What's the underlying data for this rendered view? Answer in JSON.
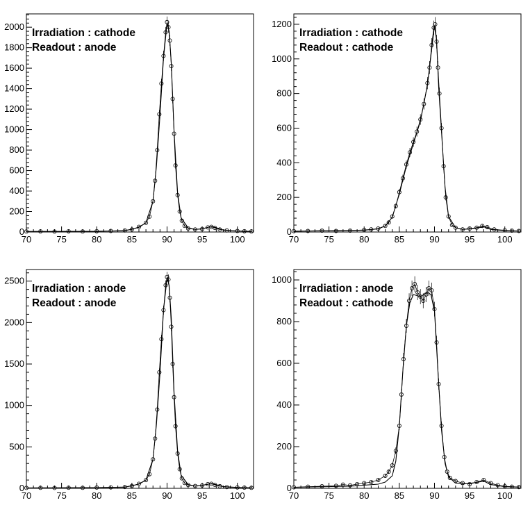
{
  "chart_data": [
    {
      "type": "scatter",
      "annotations": [
        "Irradiation : cathode",
        "Readout : anode"
      ],
      "xlim": [
        70,
        102.3
      ],
      "ylim": [
        0,
        2130
      ],
      "x_ticks": [
        70,
        75,
        80,
        85,
        90,
        95,
        100
      ],
      "y_ticks": [
        0,
        200,
        400,
        600,
        800,
        1000,
        1200,
        1400,
        1600,
        1800,
        2000
      ],
      "grid": false,
      "series": [
        {
          "kind": "data_points_with_error_bars",
          "x": [
            70,
            72,
            74,
            76,
            78,
            80,
            82,
            84,
            85,
            86,
            87,
            87.5,
            88,
            88.3,
            88.6,
            88.9,
            89.2,
            89.5,
            89.8,
            90.0,
            90.2,
            90.4,
            90.6,
            90.8,
            91.0,
            91.2,
            91.5,
            91.8,
            92.1,
            92.5,
            93,
            94,
            95,
            95.8,
            96.3,
            96.8,
            97.5,
            98.5,
            100,
            101,
            102
          ],
          "y": [
            5,
            6,
            4,
            7,
            5,
            8,
            10,
            15,
            25,
            50,
            90,
            150,
            300,
            500,
            800,
            1150,
            1450,
            1720,
            1950,
            2050,
            2000,
            1870,
            1620,
            1300,
            960,
            650,
            360,
            200,
            110,
            60,
            35,
            25,
            30,
            45,
            50,
            40,
            25,
            15,
            10,
            8,
            6
          ]
        },
        {
          "kind": "fit_curve",
          "x": [
            70,
            80,
            84,
            86,
            87,
            88,
            88.5,
            89,
            89.5,
            90,
            90.3,
            90.6,
            91,
            91.5,
            92,
            93,
            94,
            95,
            96,
            96.5,
            97,
            98,
            100,
            102
          ],
          "y": [
            5,
            7,
            12,
            45,
            90,
            300,
            650,
            1150,
            1700,
            2040,
            1960,
            1650,
            980,
            380,
            140,
            40,
            25,
            32,
            48,
            52,
            42,
            20,
            10,
            6
          ]
        }
      ]
    },
    {
      "type": "scatter",
      "annotations": [
        "Irradiation : cathode",
        "Readout : cathode"
      ],
      "xlim": [
        70,
        102.3
      ],
      "ylim": [
        0,
        1260
      ],
      "x_ticks": [
        70,
        75,
        80,
        85,
        90,
        95,
        100
      ],
      "y_ticks": [
        0,
        200,
        400,
        600,
        800,
        1000,
        1200
      ],
      "grid": false,
      "series": [
        {
          "kind": "data_points_with_error_bars",
          "x": [
            70,
            72,
            74,
            76,
            78,
            80,
            81,
            82,
            83,
            83.5,
            84,
            84.5,
            85,
            85.5,
            86,
            86.5,
            87,
            87.5,
            88,
            88.5,
            89,
            89.3,
            89.6,
            89.9,
            90.1,
            90.3,
            90.5,
            90.7,
            91.0,
            91.3,
            91.6,
            92,
            92.5,
            93,
            94,
            95,
            96,
            96.8,
            97.5,
            98.5,
            100,
            101,
            102
          ],
          "y": [
            5,
            6,
            8,
            6,
            8,
            12,
            15,
            20,
            35,
            55,
            90,
            150,
            230,
            310,
            390,
            460,
            520,
            580,
            650,
            740,
            860,
            950,
            1080,
            1180,
            1200,
            1100,
            950,
            800,
            600,
            380,
            200,
            90,
            40,
            25,
            15,
            20,
            25,
            35,
            28,
            15,
            10,
            8,
            6
          ]
        },
        {
          "kind": "fit_curve",
          "x": [
            70,
            80,
            82,
            83,
            84,
            85,
            86,
            87,
            88,
            89,
            89.5,
            90,
            90.3,
            90.6,
            91,
            91.5,
            92,
            93,
            94,
            95,
            96,
            97,
            98,
            100,
            102
          ],
          "y": [
            5,
            10,
            18,
            35,
            85,
            220,
            380,
            510,
            640,
            850,
            1020,
            1190,
            1110,
            830,
            580,
            260,
            90,
            25,
            15,
            18,
            22,
            30,
            15,
            8,
            6
          ]
        }
      ]
    },
    {
      "type": "scatter",
      "annotations": [
        "Irradiation : anode",
        "Readout : anode"
      ],
      "xlim": [
        70,
        102.3
      ],
      "ylim": [
        0,
        2640
      ],
      "x_ticks": [
        70,
        75,
        80,
        85,
        90,
        95,
        100
      ],
      "y_ticks": [
        0,
        500,
        1000,
        1500,
        2000,
        2500
      ],
      "grid": false,
      "series": [
        {
          "kind": "data_points_with_error_bars",
          "x": [
            70,
            72,
            74,
            76,
            78,
            80,
            82,
            84,
            85,
            86,
            87,
            87.5,
            88,
            88.3,
            88.6,
            88.9,
            89.2,
            89.5,
            89.8,
            90.0,
            90.2,
            90.4,
            90.6,
            90.8,
            91.0,
            91.2,
            91.5,
            91.8,
            92.1,
            92.5,
            93,
            94,
            95,
            95.8,
            96.3,
            96.8,
            97.5,
            98.5,
            100,
            101,
            102
          ],
          "y": [
            5,
            6,
            5,
            7,
            6,
            9,
            11,
            16,
            28,
            55,
            100,
            170,
            350,
            600,
            950,
            1400,
            1800,
            2150,
            2450,
            2550,
            2520,
            2300,
            1950,
            1500,
            1100,
            750,
            420,
            230,
            120,
            65,
            40,
            28,
            35,
            50,
            55,
            42,
            26,
            15,
            10,
            8,
            6
          ]
        },
        {
          "kind": "fit_curve",
          "x": [
            70,
            80,
            84,
            86,
            87,
            88,
            88.5,
            89,
            89.5,
            90,
            90.3,
            90.6,
            91,
            91.5,
            92,
            93,
            94,
            95,
            96,
            96.5,
            97,
            98,
            100,
            102
          ],
          "y": [
            5,
            8,
            14,
            50,
            100,
            350,
            780,
            1400,
            2150,
            2540,
            2450,
            2050,
            1150,
            450,
            160,
            45,
            28,
            36,
            52,
            56,
            44,
            22,
            10,
            6
          ]
        }
      ]
    },
    {
      "type": "scatter",
      "annotations": [
        "Irradiation : anode",
        "Readout : cathode"
      ],
      "xlim": [
        70,
        102.3
      ],
      "ylim": [
        0,
        1050
      ],
      "x_ticks": [
        70,
        75,
        80,
        85,
        90,
        95,
        100
      ],
      "y_ticks": [
        0,
        200,
        400,
        600,
        800,
        1000
      ],
      "grid": false,
      "series": [
        {
          "kind": "data_points_with_error_bars",
          "x": [
            70,
            72,
            74,
            76,
            77,
            78,
            79,
            80,
            81,
            82,
            83,
            83.5,
            84,
            84.5,
            85,
            85.3,
            85.6,
            86,
            86.4,
            86.8,
            87.2,
            87.6,
            88,
            88.4,
            88.8,
            89.2,
            89.6,
            90,
            90.3,
            90.6,
            91,
            91.4,
            91.8,
            92.2,
            93,
            94,
            95,
            96,
            97,
            98,
            99,
            100,
            101,
            102
          ],
          "y": [
            5,
            8,
            10,
            12,
            18,
            14,
            20,
            25,
            30,
            40,
            60,
            80,
            110,
            180,
            300,
            450,
            620,
            780,
            900,
            960,
            980,
            940,
            920,
            900,
            930,
            960,
            950,
            860,
            700,
            500,
            300,
            150,
            80,
            50,
            35,
            25,
            20,
            30,
            40,
            25,
            15,
            10,
            8,
            6
          ]
        },
        {
          "kind": "fit_curve",
          "x": [
            70,
            78,
            82,
            83,
            84,
            84.5,
            85,
            85.5,
            86,
            86.5,
            87,
            88,
            89,
            89.5,
            90,
            90.5,
            91,
            91.5,
            92,
            93,
            94,
            96,
            97,
            98,
            100,
            102
          ],
          "y": [
            5,
            10,
            20,
            30,
            60,
            130,
            300,
            560,
            780,
            890,
            930,
            920,
            940,
            930,
            850,
            560,
            280,
            120,
            55,
            25,
            20,
            28,
            35,
            18,
            8,
            6
          ]
        }
      ]
    }
  ]
}
